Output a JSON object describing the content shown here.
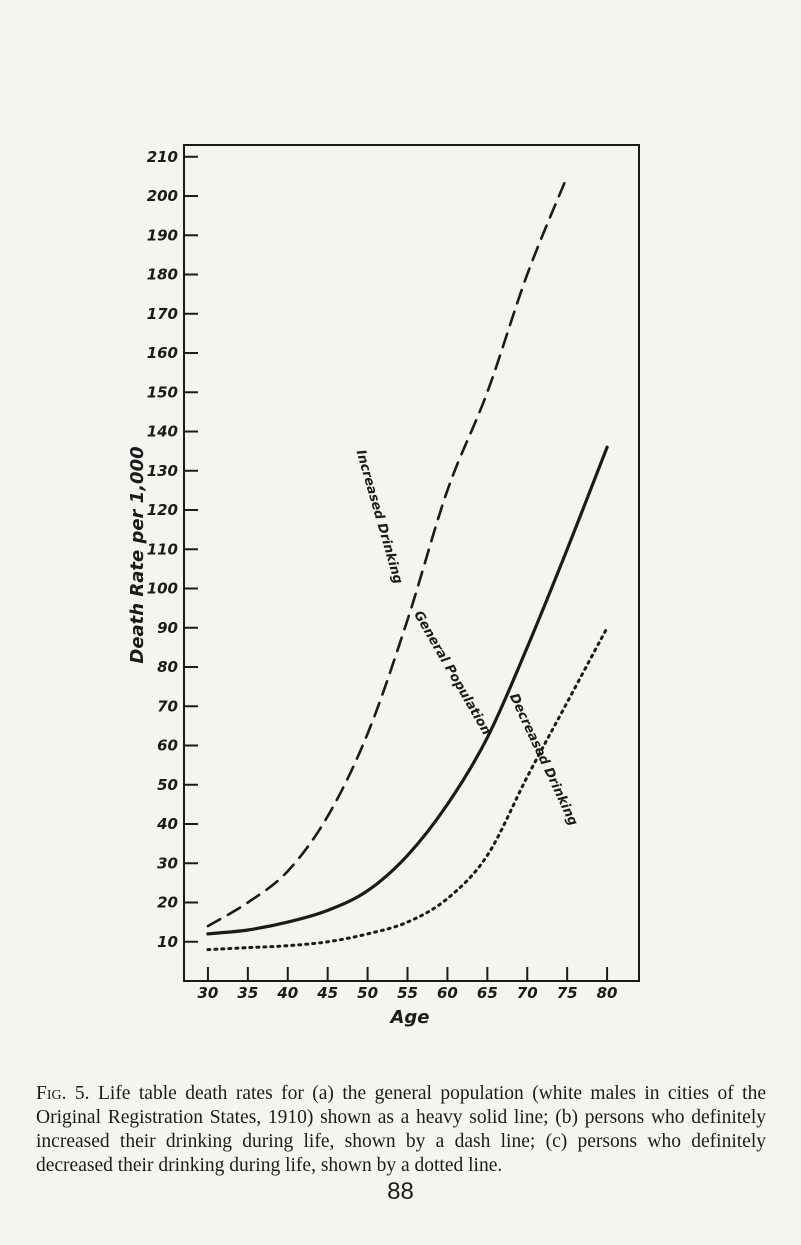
{
  "chart_data": {
    "type": "line",
    "xlabel": "Age",
    "ylabel": "Death Rate per 1,000",
    "x": [
      30,
      35,
      40,
      45,
      50,
      55,
      60,
      65,
      70,
      75,
      80
    ],
    "x_tick_labels": [
      "30",
      "35",
      "40",
      "45",
      "50",
      "55",
      "60",
      "65",
      "70",
      "75",
      "80"
    ],
    "y_ticks": [
      10,
      20,
      30,
      40,
      50,
      60,
      70,
      80,
      90,
      100,
      110,
      120,
      130,
      140,
      150,
      160,
      170,
      180,
      190,
      200,
      210
    ],
    "y_tick_labels": [
      "10",
      "20",
      "30",
      "40",
      "50",
      "60",
      "70",
      "80",
      "90",
      "100",
      "110",
      "120",
      "130",
      "140",
      "150",
      "160",
      "170",
      "180",
      "190",
      "200",
      "210"
    ],
    "xlim": [
      27,
      84
    ],
    "ylim": [
      0,
      213
    ],
    "grid": false,
    "series": [
      {
        "name": "Increased Drinking",
        "style": "dashed",
        "x": [
          30,
          35,
          40,
          45,
          50,
          55,
          60,
          65,
          70,
          75
        ],
        "values": [
          14,
          20,
          28,
          42,
          63,
          92,
          125,
          150,
          180,
          205
        ]
      },
      {
        "name": "General Population",
        "style": "solid",
        "x": [
          30,
          35,
          40,
          45,
          50,
          55,
          60,
          65,
          70,
          75,
          80
        ],
        "values": [
          12,
          13,
          15,
          18,
          23,
          32,
          45,
          62,
          85,
          110,
          136
        ]
      },
      {
        "name": "Decreased Drinking",
        "style": "dotted",
        "x": [
          30,
          35,
          40,
          45,
          50,
          55,
          60,
          65,
          70,
          75,
          80
        ],
        "values": [
          8,
          8.5,
          9,
          10,
          12,
          15,
          21,
          32,
          52,
          71,
          90
        ]
      }
    ]
  },
  "caption": {
    "label": "Fig. 5.",
    "text": "Life table death rates for (a) the general population (white males in cities of the Original Registration States, 1910) shown as a heavy solid line; (b) persons who definitely increased their drinking during life, shown by a dash line; (c) persons who definitely decreased their drinking during life, shown by a dotted line."
  },
  "page_number": "88"
}
